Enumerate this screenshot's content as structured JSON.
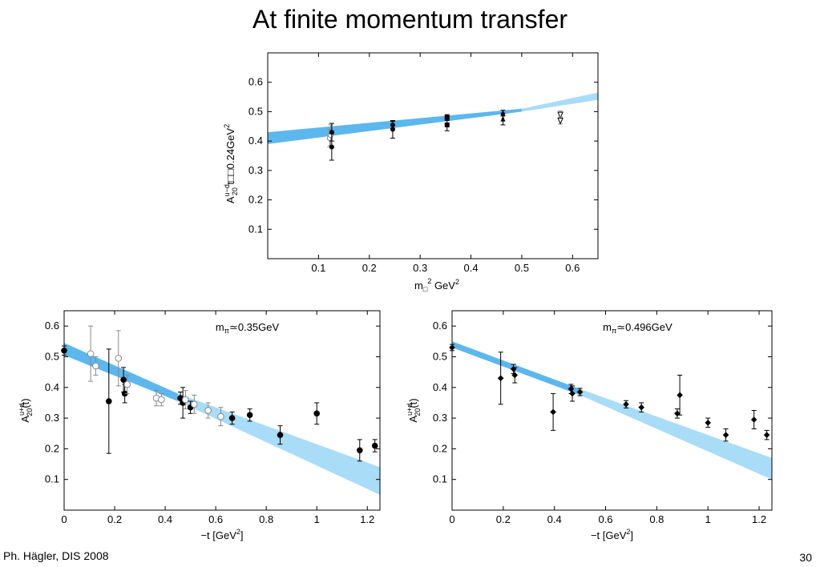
{
  "slide": {
    "title": "At finite momentum transfer",
    "footer_left": "Ph. Hägler, DIS 2008",
    "page_number": "30"
  },
  "colors": {
    "band_dark": "#5cb7ee",
    "band_light": "#a8dcf7",
    "marker": "#000000",
    "marker_open": "#888888"
  },
  "chart_data": [
    {
      "type": "scatter",
      "ylabel_main": "A",
      "ylabel_sup": "u−d",
      "ylabel_sub": "20",
      "ylabel_rest": " t□□0.24GeV",
      "ylabel_rest_sup": "2",
      "xlabel_main": "m",
      "xlabel_sub": "□",
      "xlabel_sup": "2",
      "xlabel_rest": "  GeV",
      "xlabel_rest_sup": "2",
      "xlim": [
        0,
        0.65
      ],
      "ylim": [
        0,
        0.7
      ],
      "x_ticks": [
        "0.1",
        "0.2",
        "0.3",
        "0.4",
        "0.5",
        "0.6"
      ],
      "x_tick_values": [
        0.1,
        0.2,
        0.3,
        0.4,
        0.5,
        0.6
      ],
      "y_ticks": [
        "0.1",
        "0.2",
        "0.3",
        "0.4",
        "0.5",
        "0.6"
      ],
      "y_tick_values": [
        0.1,
        0.2,
        0.3,
        0.4,
        0.5,
        0.6
      ],
      "band": {
        "x": [
          0,
          0.5,
          0.65
        ],
        "lower": [
          0.39,
          0.5,
          0.54
        ],
        "upper": [
          0.43,
          0.51,
          0.565
        ],
        "dark_until": 0.5
      },
      "points": [
        {
          "x": 0.122,
          "y": 0.41,
          "err": 0.03,
          "marker": "circle-open"
        },
        {
          "x": 0.124,
          "y": 0.42,
          "err": 0.035,
          "marker": "circle-open"
        },
        {
          "x": 0.126,
          "y": 0.43,
          "err": 0.03,
          "marker": "circle"
        },
        {
          "x": 0.126,
          "y": 0.38,
          "err": 0.045,
          "marker": "circle"
        },
        {
          "x": 0.246,
          "y": 0.455,
          "err": 0.012,
          "marker": "circle"
        },
        {
          "x": 0.246,
          "y": 0.44,
          "err": 0.03,
          "marker": "circle"
        },
        {
          "x": 0.353,
          "y": 0.48,
          "err": 0.01,
          "marker": "square"
        },
        {
          "x": 0.353,
          "y": 0.455,
          "err": 0.02,
          "marker": "square"
        },
        {
          "x": 0.463,
          "y": 0.495,
          "err": 0.01,
          "marker": "triangle"
        },
        {
          "x": 0.463,
          "y": 0.475,
          "err": 0.02,
          "marker": "triangle"
        },
        {
          "x": 0.576,
          "y": 0.49,
          "err": 0.012,
          "marker": "triangle-down-open"
        },
        {
          "x": 0.576,
          "y": 0.47,
          "err": 0.012,
          "marker": "triangle-down-open"
        }
      ]
    },
    {
      "type": "scatter",
      "annotation_main": "m",
      "annotation_sub": "π",
      "annotation_rest": "≃0.35GeV",
      "ylabel_main": "A",
      "ylabel_sup": "u+d",
      "ylabel_sub": "20",
      "ylabel_rest": "(t)",
      "xlabel_text": "−t [GeV",
      "xlabel_sup": "2",
      "xlabel_end": "]",
      "xlim": [
        0,
        1.25
      ],
      "ylim": [
        0,
        0.65
      ],
      "x_ticks": [
        "0",
        "0.2",
        "0.4",
        "0.6",
        "0.8",
        "1",
        "1.2"
      ],
      "x_tick_values": [
        0,
        0.2,
        0.4,
        0.6,
        0.8,
        1.0,
        1.2
      ],
      "y_ticks": [
        "0.1",
        "0.2",
        "0.3",
        "0.4",
        "0.5",
        "0.6"
      ],
      "y_tick_values": [
        0.1,
        0.2,
        0.3,
        0.4,
        0.5,
        0.6
      ],
      "band": {
        "x": [
          0,
          0.45,
          1.25
        ],
        "lower": [
          0.505,
          0.355,
          0.05
        ],
        "upper": [
          0.545,
          0.38,
          0.14
        ],
        "dark_until": 0.45
      },
      "points": [
        {
          "x": 0.0,
          "y": 0.52,
          "err": 0.015,
          "marker": "circle"
        },
        {
          "x": 0.105,
          "y": 0.51,
          "err": 0.09,
          "marker": "circle-open"
        },
        {
          "x": 0.125,
          "y": 0.47,
          "err": 0.03,
          "marker": "circle-open"
        },
        {
          "x": 0.177,
          "y": 0.355,
          "err": 0.17,
          "marker": "circle"
        },
        {
          "x": 0.215,
          "y": 0.495,
          "err": 0.09,
          "marker": "circle-open"
        },
        {
          "x": 0.235,
          "y": 0.425,
          "err": 0.04,
          "marker": "circle"
        },
        {
          "x": 0.24,
          "y": 0.38,
          "err": 0.03,
          "marker": "circle"
        },
        {
          "x": 0.25,
          "y": 0.41,
          "err": 0.03,
          "marker": "circle-open"
        },
        {
          "x": 0.365,
          "y": 0.365,
          "err": 0.025,
          "marker": "circle-open"
        },
        {
          "x": 0.385,
          "y": 0.36,
          "err": 0.02,
          "marker": "circle-open"
        },
        {
          "x": 0.46,
          "y": 0.365,
          "err": 0.02,
          "marker": "circle"
        },
        {
          "x": 0.47,
          "y": 0.35,
          "err": 0.05,
          "marker": "circle"
        },
        {
          "x": 0.48,
          "y": 0.36,
          "err": 0.03,
          "marker": "circle-open"
        },
        {
          "x": 0.5,
          "y": 0.335,
          "err": 0.02,
          "marker": "circle"
        },
        {
          "x": 0.515,
          "y": 0.345,
          "err": 0.03,
          "marker": "circle-open"
        },
        {
          "x": 0.57,
          "y": 0.325,
          "err": 0.025,
          "marker": "circle-open"
        },
        {
          "x": 0.62,
          "y": 0.305,
          "err": 0.03,
          "marker": "circle-open"
        },
        {
          "x": 0.665,
          "y": 0.3,
          "err": 0.02,
          "marker": "circle"
        },
        {
          "x": 0.735,
          "y": 0.31,
          "err": 0.02,
          "marker": "circle"
        },
        {
          "x": 0.855,
          "y": 0.245,
          "err": 0.03,
          "marker": "circle"
        },
        {
          "x": 1.0,
          "y": 0.315,
          "err": 0.035,
          "marker": "circle"
        },
        {
          "x": 1.17,
          "y": 0.195,
          "err": 0.035,
          "marker": "circle"
        },
        {
          "x": 1.23,
          "y": 0.21,
          "err": 0.02,
          "marker": "circle"
        }
      ]
    },
    {
      "type": "scatter",
      "annotation_main": "m",
      "annotation_sub": "π",
      "annotation_rest": "≃0.496GeV",
      "ylabel_main": "A",
      "ylabel_sup": "u+d",
      "ylabel_sub": "20",
      "ylabel_rest": "(t)",
      "xlabel_text": "−t [GeV",
      "xlabel_sup": "2",
      "xlabel_end": "]",
      "xlim": [
        0,
        1.25
      ],
      "ylim": [
        0,
        0.65
      ],
      "x_ticks": [
        "0",
        "0.2",
        "0.4",
        "0.6",
        "0.8",
        "1",
        "1.2"
      ],
      "x_tick_values": [
        0,
        0.2,
        0.4,
        0.6,
        0.8,
        1.0,
        1.2
      ],
      "y_ticks": [
        "0.1",
        "0.2",
        "0.3",
        "0.4",
        "0.5",
        "0.6"
      ],
      "y_tick_values": [
        0.1,
        0.2,
        0.3,
        0.4,
        0.5,
        0.6
      ],
      "band": {
        "x": [
          0,
          0.5,
          1.25
        ],
        "lower": [
          0.53,
          0.375,
          0.1
        ],
        "upper": [
          0.55,
          0.395,
          0.17
        ],
        "dark_until": 0.5
      },
      "points": [
        {
          "x": 0.0,
          "y": 0.53,
          "err": 0.01,
          "marker": "diamond"
        },
        {
          "x": 0.19,
          "y": 0.43,
          "err": 0.085,
          "marker": "diamond"
        },
        {
          "x": 0.24,
          "y": 0.46,
          "err": 0.015,
          "marker": "diamond"
        },
        {
          "x": 0.245,
          "y": 0.44,
          "err": 0.025,
          "marker": "diamond"
        },
        {
          "x": 0.395,
          "y": 0.32,
          "err": 0.06,
          "marker": "diamond"
        },
        {
          "x": 0.465,
          "y": 0.395,
          "err": 0.015,
          "marker": "diamond"
        },
        {
          "x": 0.47,
          "y": 0.38,
          "err": 0.025,
          "marker": "diamond"
        },
        {
          "x": 0.5,
          "y": 0.385,
          "err": 0.012,
          "marker": "diamond"
        },
        {
          "x": 0.68,
          "y": 0.345,
          "err": 0.012,
          "marker": "diamond"
        },
        {
          "x": 0.74,
          "y": 0.335,
          "err": 0.015,
          "marker": "diamond"
        },
        {
          "x": 0.88,
          "y": 0.315,
          "err": 0.015,
          "marker": "diamond"
        },
        {
          "x": 0.89,
          "y": 0.375,
          "err": 0.065,
          "marker": "diamond"
        },
        {
          "x": 1.0,
          "y": 0.285,
          "err": 0.015,
          "marker": "diamond"
        },
        {
          "x": 1.07,
          "y": 0.245,
          "err": 0.02,
          "marker": "diamond"
        },
        {
          "x": 1.18,
          "y": 0.295,
          "err": 0.03,
          "marker": "diamond"
        },
        {
          "x": 1.23,
          "y": 0.245,
          "err": 0.015,
          "marker": "diamond"
        }
      ]
    }
  ]
}
